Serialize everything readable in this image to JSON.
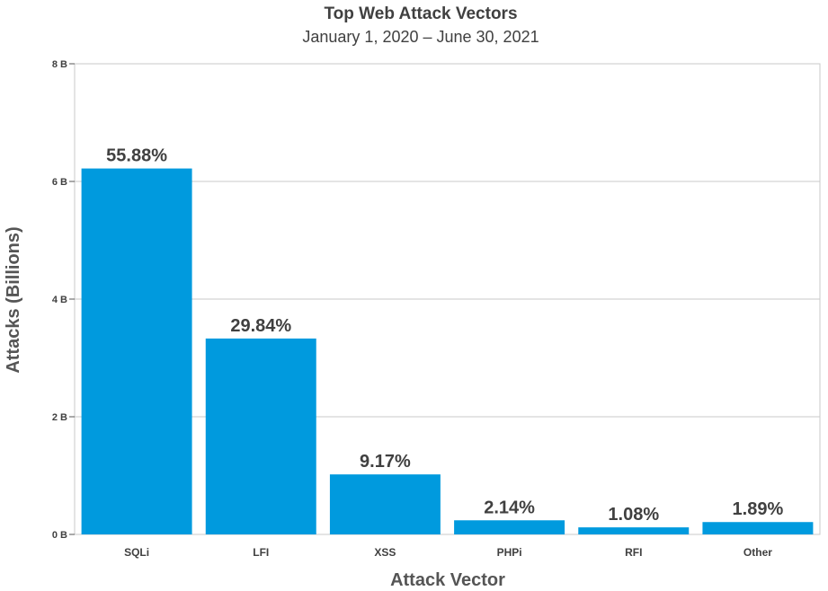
{
  "chart_data": {
    "type": "bar",
    "title": "Top Web Attack Vectors",
    "subtitle": "January 1, 2020 – June 30, 2021",
    "xlabel": "Attack Vector",
    "ylabel": "Attacks (Billions)",
    "categories": [
      "SQLi",
      "LFI",
      "XSS",
      "PHPi",
      "RFI",
      "Other"
    ],
    "values": [
      6.22,
      3.33,
      1.02,
      0.24,
      0.12,
      0.21
    ],
    "data_labels": [
      "55.88%",
      "29.84%",
      "9.17%",
      "2.14%",
      "1.08%",
      "1.89%"
    ],
    "ylim": [
      0,
      8
    ],
    "yticks": [
      0,
      2,
      4,
      6,
      8
    ],
    "ytick_labels": [
      "0 B",
      "2 B",
      "4 B",
      "6 B",
      "8 B"
    ],
    "grid": true,
    "bar_color": "#009ade"
  }
}
